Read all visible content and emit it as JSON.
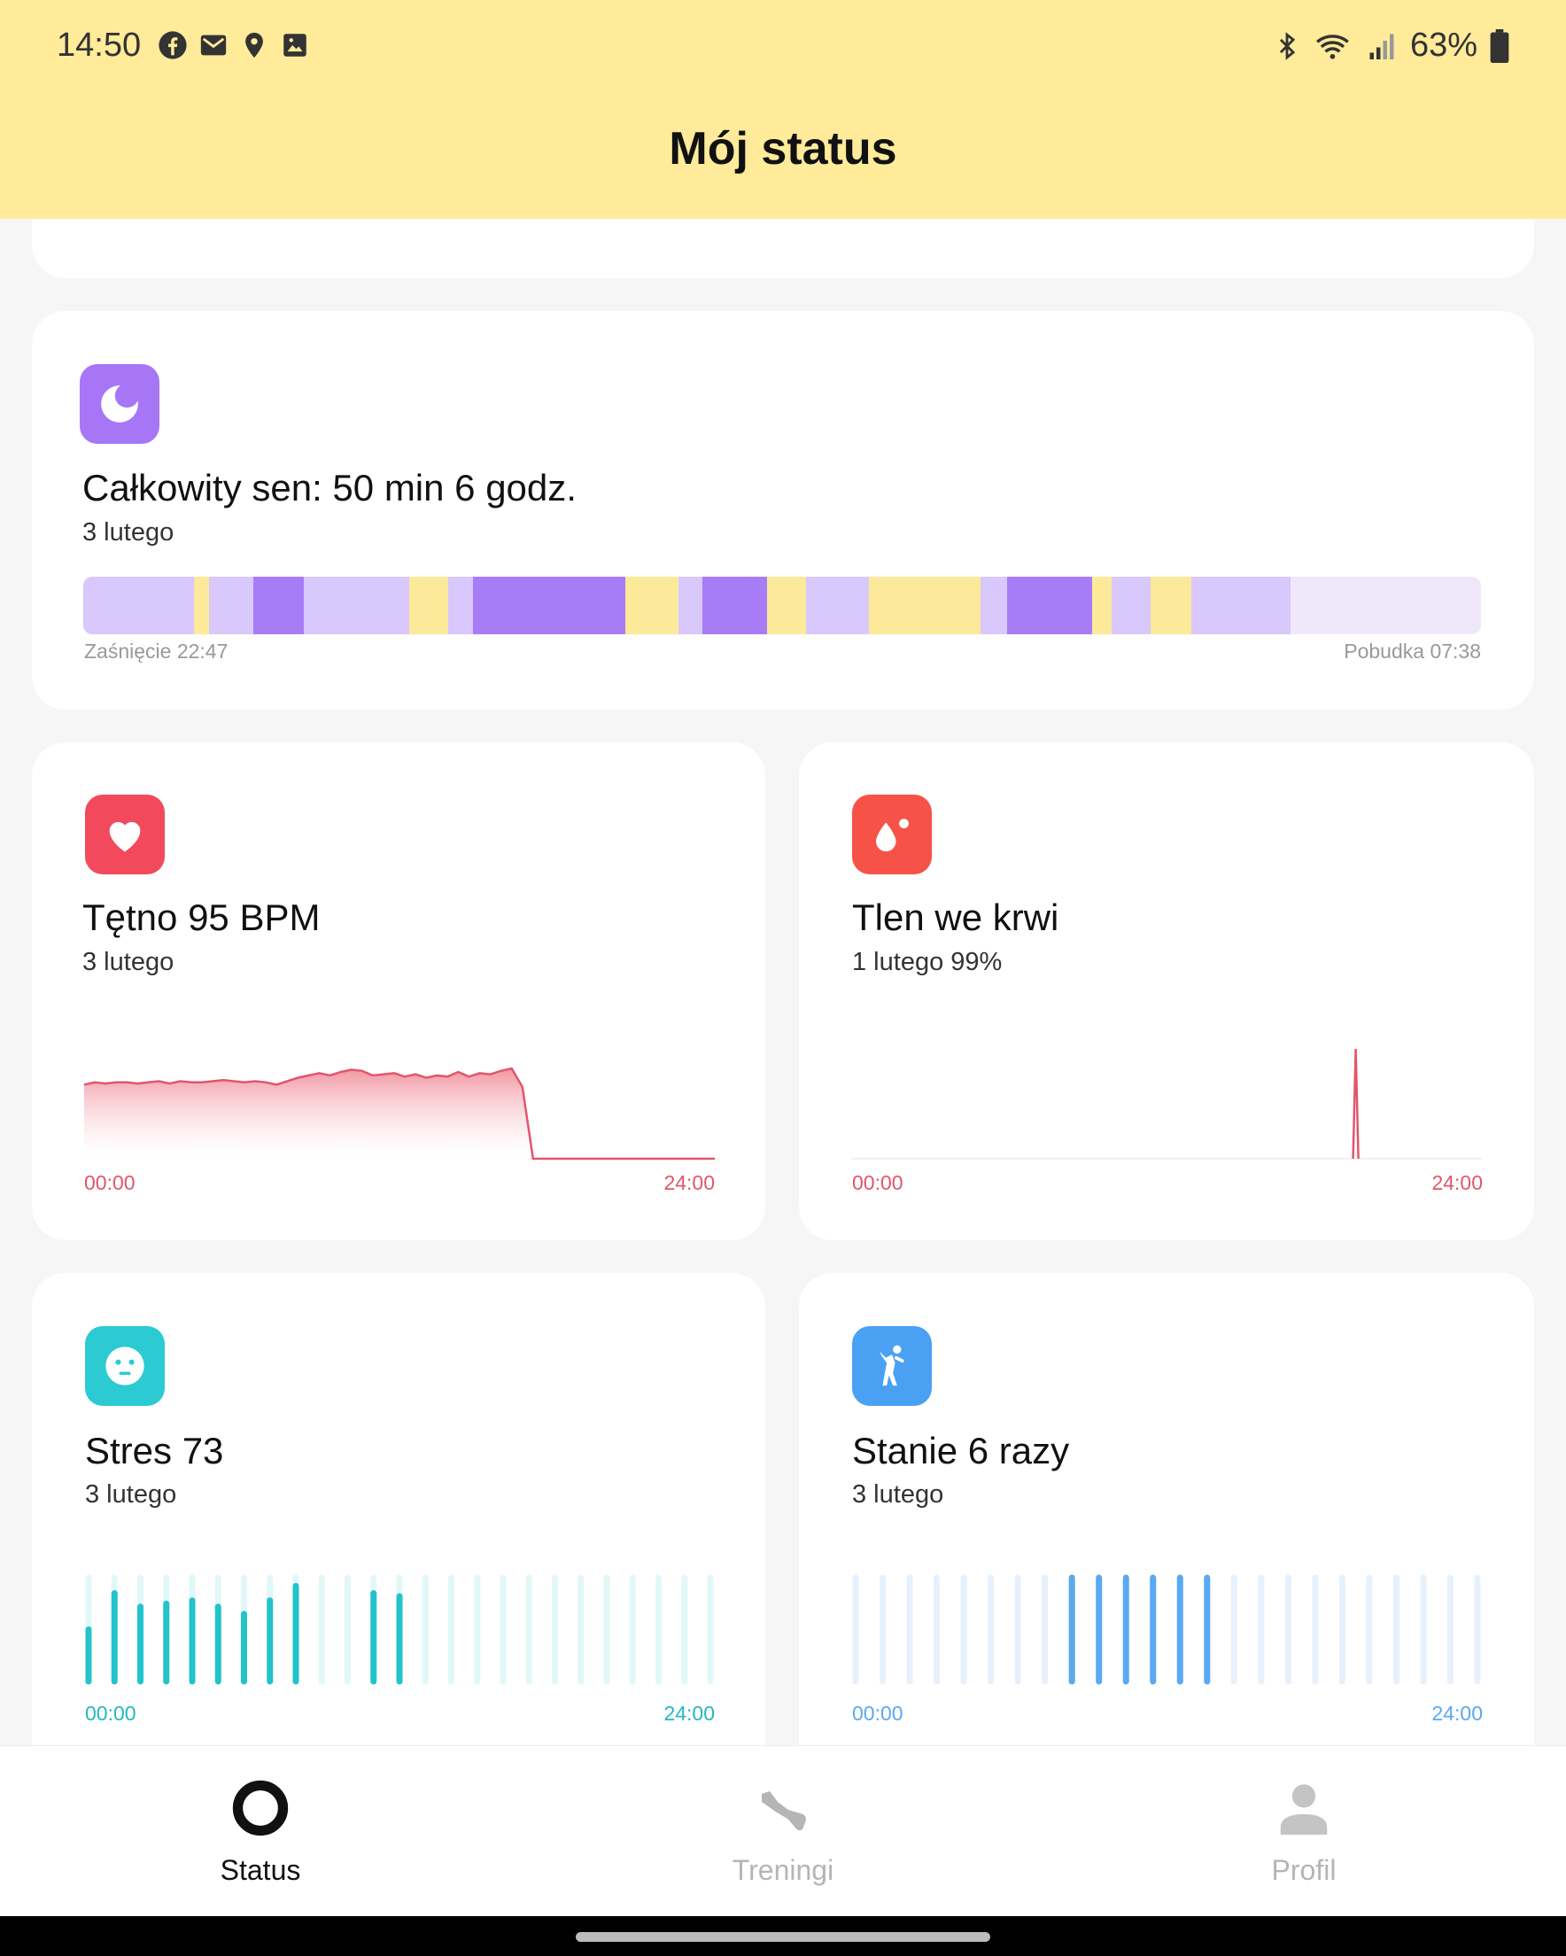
{
  "status_bar": {
    "time": "14:50",
    "left_icons": [
      "facebook-icon",
      "mail-icon",
      "location-icon",
      "image-icon"
    ],
    "right_icons": [
      "bluetooth-icon",
      "wifi-icon",
      "signal-icon",
      "battery-icon"
    ],
    "battery": "63%"
  },
  "header": {
    "title": "Mój status"
  },
  "sleep": {
    "icon": "moon-icon",
    "title": "Całkowity sen: 50 min 6 godz.",
    "date": "3 lutego",
    "start_label": "Zaśnięcie 22:47",
    "end_label": "Pobudka 07:38",
    "colors": {
      "light": "#d9c8fb",
      "deep": "#a87cf7",
      "awake": "#fde99a",
      "empty": "#efe8fb"
    },
    "segments": [
      {
        "type": "light",
        "pct": 7.9
      },
      {
        "type": "awake",
        "pct": 1.1
      },
      {
        "type": "light",
        "pct": 3.2
      },
      {
        "type": "deep",
        "pct": 3.6
      },
      {
        "type": "light",
        "pct": 7.5
      },
      {
        "type": "awake",
        "pct": 2.8
      },
      {
        "type": "light",
        "pct": 1.8
      },
      {
        "type": "deep",
        "pct": 10.9
      },
      {
        "type": "awake",
        "pct": 3.8
      },
      {
        "type": "light",
        "pct": 1.7
      },
      {
        "type": "deep",
        "pct": 4.6
      },
      {
        "type": "awake",
        "pct": 2.8
      },
      {
        "type": "light",
        "pct": 4.5
      },
      {
        "type": "awake",
        "pct": 8.0
      },
      {
        "type": "light",
        "pct": 1.9
      },
      {
        "type": "deep",
        "pct": 6.1
      },
      {
        "type": "awake",
        "pct": 1.4
      },
      {
        "type": "light",
        "pct": 2.8
      },
      {
        "type": "awake",
        "pct": 2.9
      },
      {
        "type": "light",
        "pct": 7.1
      },
      {
        "type": "empty",
        "pct": 13.6
      }
    ]
  },
  "heart": {
    "icon": "heart-icon",
    "title": "Tętno 95 BPM",
    "date": "3 lutego",
    "x_start": "00:00",
    "x_end": "24:00",
    "color": "#e2566b",
    "series": [
      72,
      74,
      73,
      74,
      74,
      73,
      74,
      75,
      73,
      75,
      74,
      74,
      75,
      76,
      75,
      74,
      75,
      74,
      72,
      75,
      78,
      80,
      82,
      80,
      83,
      85,
      84,
      80,
      81,
      82,
      79,
      81,
      78,
      80,
      79,
      83,
      79,
      82,
      81,
      84,
      86,
      70,
      0,
      0,
      0,
      0,
      0,
      0,
      0,
      0,
      0,
      0,
      0,
      0,
      0,
      0,
      0,
      0,
      0,
      0
    ]
  },
  "oxygen": {
    "icon": "drop-icon",
    "title": "Tlen we krwi",
    "date": "1 lutego 99%",
    "x_start": "00:00",
    "x_end": "24:00",
    "color": "#e2566b",
    "spike_position": 0.8
  },
  "stress": {
    "icon": "face-icon",
    "title": "Stres 73",
    "date": "3 lutego",
    "x_start": "00:00",
    "x_end": "24:00",
    "color": "#22c3ca",
    "track_color": "#e2f7f8",
    "bars": [
      0.5,
      0.85,
      0.72,
      0.75,
      0.78,
      0.72,
      0.65,
      0.78,
      0.92,
      0,
      0,
      0.85,
      0.82,
      0,
      0,
      0,
      0,
      0,
      0,
      0,
      0,
      0,
      0,
      0,
      0
    ]
  },
  "standing": {
    "icon": "stretch-person-icon",
    "title": "Stanie 6 razy",
    "date": "3 lutego",
    "x_start": "00:00",
    "x_end": "24:00",
    "color": "#5aa9f1",
    "track_color": "#e6f1fc",
    "bars": [
      0,
      0,
      0,
      0,
      0,
      0,
      0,
      0,
      1,
      1,
      1,
      1,
      1,
      1,
      0,
      0,
      0,
      0,
      0,
      0,
      0,
      0,
      0,
      0
    ]
  },
  "nav": {
    "items": [
      {
        "label": "Status",
        "icon": "ring-icon",
        "active": true
      },
      {
        "label": "Treningi",
        "icon": "shoe-icon",
        "active": false
      },
      {
        "label": "Profil",
        "icon": "person-icon",
        "active": false
      }
    ],
    "active_color": "#111111",
    "inactive_color": "#b5b5b5"
  }
}
